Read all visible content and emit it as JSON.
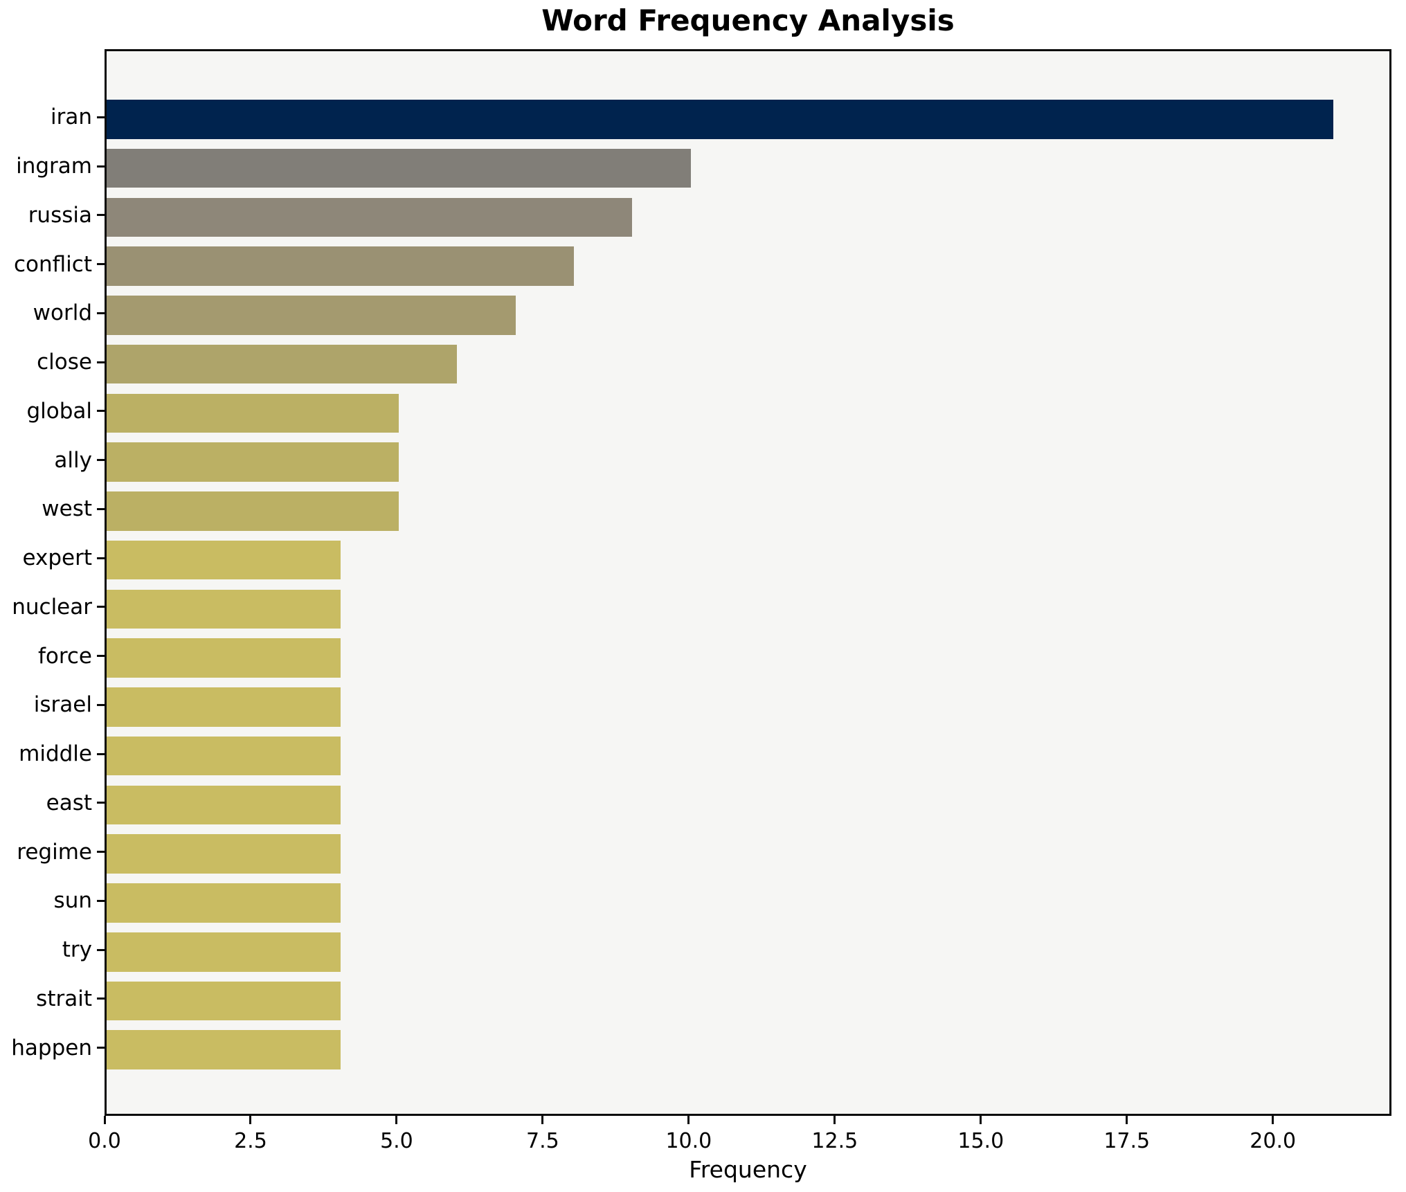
{
  "chart_data": {
    "type": "bar",
    "orientation": "horizontal",
    "title": "Word Frequency Analysis",
    "xlabel": "Frequency",
    "ylabel": "",
    "categories": [
      "iran",
      "ingram",
      "russia",
      "conflict",
      "world",
      "close",
      "global",
      "ally",
      "west",
      "expert",
      "nuclear",
      "force",
      "israel",
      "middle",
      "east",
      "regime",
      "sun",
      "try",
      "strait",
      "happen"
    ],
    "values": [
      21,
      10,
      9,
      8,
      7,
      6,
      5,
      5,
      5,
      4,
      4,
      4,
      4,
      4,
      4,
      4,
      4,
      4,
      4,
      4
    ],
    "bar_colors": [
      "#00234e",
      "#817e78",
      "#8e8779",
      "#9a9173",
      "#a49a6f",
      "#aea46a",
      "#bbb064",
      "#bbb064",
      "#bbb064",
      "#c9bc62",
      "#c9bc62",
      "#c9bc62",
      "#c9bc62",
      "#c9bc62",
      "#c9bc62",
      "#c9bc62",
      "#c9bc62",
      "#c9bc62",
      "#c9bc62",
      "#c9bc62"
    ],
    "xlim": [
      0,
      22.03
    ],
    "xticks": [
      0,
      2.5,
      5,
      7.5,
      10,
      12.5,
      15,
      17.5,
      20
    ],
    "xtick_labels": [
      "0.0",
      "2.5",
      "5.0",
      "7.5",
      "10.0",
      "12.5",
      "15.0",
      "17.5",
      "20.0"
    ],
    "grid": false,
    "legend": "none",
    "colors": {
      "plot_bg": "#f6f6f4",
      "figure_bg": "#ffffff",
      "spine": "#0a0a0a",
      "text": "#000000"
    }
  }
}
